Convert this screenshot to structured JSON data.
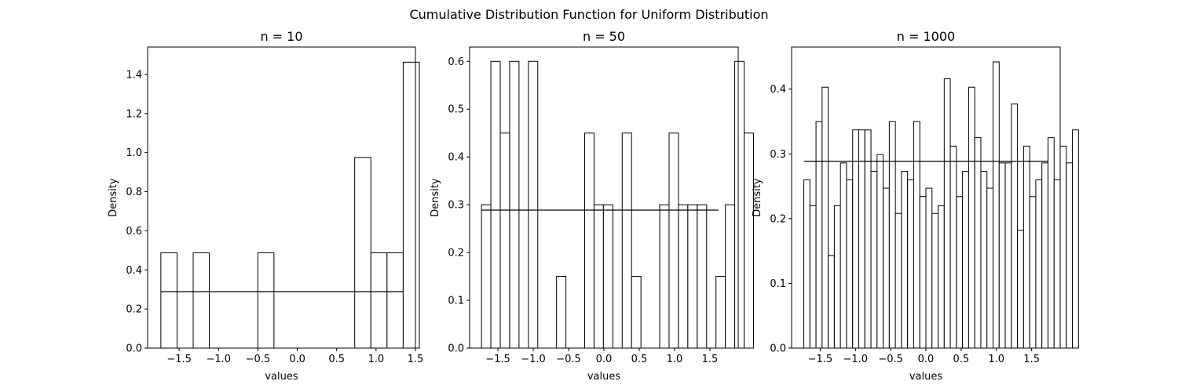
{
  "figure": {
    "title": "Cumulative Distribution Function for Uniform Distribution"
  },
  "chart_data": [
    {
      "type": "histogram",
      "title": "n = 10",
      "xlabel": "values",
      "ylabel": "Density",
      "xlim": [
        -1.9,
        1.5
      ],
      "ylim": [
        0,
        1.54
      ],
      "xticks": [
        -1.5,
        -1.0,
        -0.5,
        0.0,
        0.5,
        1.0,
        1.5
      ],
      "yticks": [
        0.0,
        0.2,
        0.4,
        0.6,
        0.8,
        1.0,
        1.2,
        1.4
      ],
      "bin_start": -1.7320508,
      "bin_width": 0.2051,
      "values": [
        0.4875,
        0,
        0.4875,
        0,
        0,
        0,
        0.4875,
        0,
        0,
        0,
        0,
        0,
        0.975,
        0.4875,
        0.4875,
        1.4625
      ],
      "reference_line": {
        "y": 0.2887,
        "x": [
          -1.7320508,
          1.35
        ]
      }
    },
    {
      "type": "histogram",
      "title": "n = 50",
      "xlabel": "values",
      "ylabel": "Density",
      "xlim": [
        -1.9,
        1.9
      ],
      "ylim": [
        0,
        0.63
      ],
      "xticks": [
        -1.5,
        -1.0,
        -0.5,
        0.0,
        0.5,
        1.0,
        1.5
      ],
      "yticks": [
        0.0,
        0.1,
        0.2,
        0.3,
        0.4,
        0.5,
        0.6
      ],
      "bin_start": -1.7320508,
      "bin_width": 0.1327,
      "values": [
        0.3,
        0.6,
        0.45,
        0.6,
        0,
        0.6,
        0,
        0,
        0.15,
        0,
        0,
        0.45,
        0.3,
        0.3,
        0,
        0.45,
        0.15,
        0,
        0,
        0.3,
        0.45,
        0.3,
        0.3,
        0.3,
        0,
        0.15,
        0.3,
        0.6,
        0.45
      ],
      "reference_line": {
        "y": 0.2887,
        "x": [
          -1.7320508,
          1.62
        ]
      }
    },
    {
      "type": "histogram",
      "title": "n = 1000",
      "xlabel": "values",
      "ylabel": "Density",
      "xlim": [
        -1.905,
        1.905
      ],
      "ylim": [
        0,
        0.465
      ],
      "xticks": [
        -1.5,
        -1.0,
        -0.5,
        0.0,
        0.5,
        1.0,
        1.5
      ],
      "yticks": [
        0.0,
        0.1,
        0.2,
        0.3,
        0.4
      ],
      "bin_start": -1.7320508,
      "bin_width": 0.0866,
      "values": [
        0.26,
        0.22,
        0.35,
        0.403,
        0.143,
        0.22,
        0.286,
        0.26,
        0.337,
        0.337,
        0.337,
        0.273,
        0.299,
        0.247,
        0.35,
        0.208,
        0.273,
        0.26,
        0.35,
        0.234,
        0.247,
        0.208,
        0.22,
        0.416,
        0.312,
        0.234,
        0.273,
        0.403,
        0.325,
        0.273,
        0.247,
        0.442,
        0.286,
        0.286,
        0.377,
        0.182,
        0.312,
        0.234,
        0.26,
        0.286,
        0.325,
        0.26,
        0.312,
        0.286,
        0.337
      ],
      "reference_line": {
        "y": 0.2887,
        "x": [
          -1.7320508,
          1.7320508
        ]
      }
    }
  ]
}
